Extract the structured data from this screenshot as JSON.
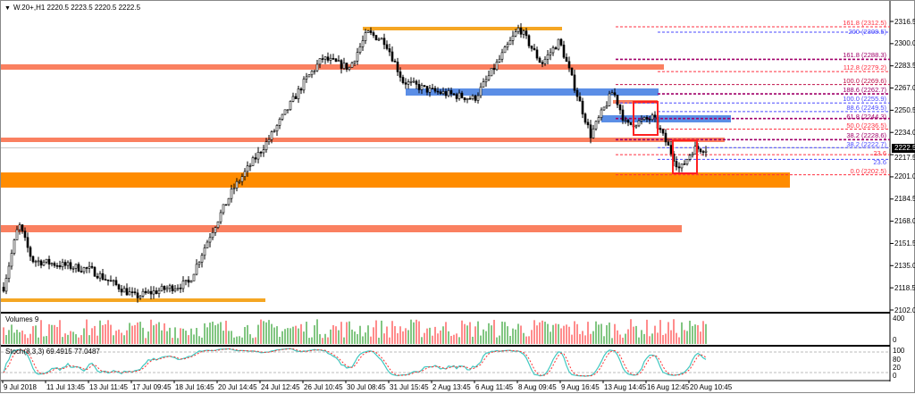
{
  "chart": {
    "symbol_line": "W.20+,H1  2220.5 2223.5 2220.5 2222.5",
    "current_price": "2222.5",
    "y_axis": [
      "2316.5",
      "2300.0",
      "2283.5",
      "2267.0",
      "2250.5",
      "2234.0",
      "2217.5",
      "2201.0",
      "2184.5",
      "2168.0",
      "2151.5",
      "2135.0",
      "2118.5",
      "2102.0"
    ],
    "y_range": [
      2102.0,
      2316.5
    ],
    "x_axis": [
      "9 Jul 2018",
      "11 Jul 13:45",
      "13 Jul 11:45",
      "17 Jul 09:45",
      "18 Jul 16:45",
      "20 Jul 14:45",
      "24 Jul 12:45",
      "26 Jul 10:45",
      "30 Jul 08:45",
      "31 Jul 15:45",
      "2 Aug 13:45",
      "6 Aug 11:45",
      "8 Aug 09:45",
      "9 Aug 16:45",
      "13 Aug 14:45",
      "16 Aug 12:45",
      "20 Aug 10:45"
    ],
    "fib_levels": [
      {
        "label": "161.8 (2312.5)",
        "price": 2312.5,
        "color": "#ff3040"
      },
      {
        "label": "200 (2308.5)",
        "price": 2308.5,
        "color": "#4a4aff"
      },
      {
        "label": "161.8 (2288.3)",
        "price": 2288.3,
        "color": "#a0006a"
      },
      {
        "label": "112.8 (2279.2)",
        "price": 2279.2,
        "color": "#ff3040"
      },
      {
        "label": "100.0 (2269.6)",
        "price": 2269.6,
        "color": "#c0104a"
      },
      {
        "label": "188.6 (2262.7)",
        "price": 2262.7,
        "color": "#a0006a"
      },
      {
        "label": "100.0 (2255.9)",
        "price": 2255.9,
        "color": "#4a4aff"
      },
      {
        "label": "88.6 (2249.5)",
        "price": 2249.5,
        "color": "#4a4aff"
      },
      {
        "label": "61.8 (2244.3)",
        "price": 2244.3,
        "color": "#a0006a"
      },
      {
        "label": "50.0 (2236.5)",
        "price": 2236.5,
        "color": "#ff3040"
      },
      {
        "label": "38.2 (2228.6)",
        "price": 2228.6,
        "color": "#a0006a"
      },
      {
        "label": "38.2 (2222.7)",
        "price": 2222.7,
        "color": "#4a4aff"
      },
      {
        "label": "23.6",
        "price": 2217.5,
        "color": "#ff3040"
      },
      {
        "label": "23.6",
        "price": 2214.0,
        "color": "#4a4aff"
      },
      {
        "label": "0.0 (2202.5)",
        "price": 2202.5,
        "color": "#ff3040"
      }
    ],
    "colors": {
      "orange": "#ff8c00",
      "gold": "#f5a623",
      "salmon": "#fa8060",
      "blue": "#5b8ee6",
      "box": "#ff2020",
      "bull_vol": "#2ea02e",
      "bear_vol": "#ff4040"
    }
  },
  "volumes": {
    "label": "Volumes 9",
    "axis": [
      "400",
      "0"
    ]
  },
  "stoch": {
    "label": "Stoch(8,3,3) 69.4915 77.0487",
    "axis": [
      "100",
      "80",
      "20",
      "0"
    ]
  }
}
